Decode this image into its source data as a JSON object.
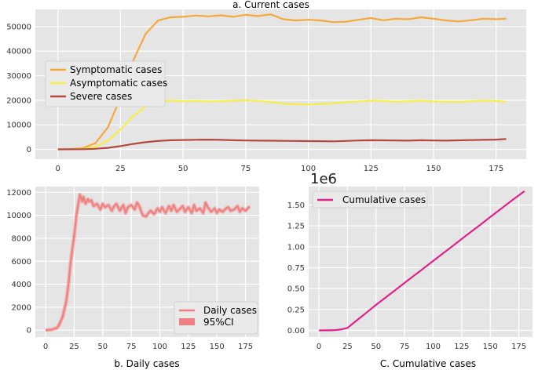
{
  "chart_data": [
    {
      "type": "line",
      "title": "a. Current cases",
      "xlim": [
        -9,
        187
      ],
      "ylim": [
        -4000,
        57000
      ],
      "x_ticks": [
        0,
        25,
        50,
        75,
        100,
        125,
        150,
        175
      ],
      "y_ticks": [
        0,
        10000,
        20000,
        30000,
        40000,
        50000
      ],
      "grid": true,
      "legend_position": "left-middle",
      "series": [
        {
          "name": "Symptomatic cases",
          "color": "#f5a93a",
          "x": [
            0,
            5,
            10,
            15,
            20,
            25,
            30,
            35,
            40,
            45,
            50,
            55,
            60,
            65,
            70,
            75,
            80,
            85,
            90,
            95,
            100,
            105,
            110,
            115,
            120,
            125,
            130,
            135,
            140,
            145,
            150,
            155,
            160,
            165,
            170,
            175,
            179
          ],
          "y": [
            0,
            100,
            500,
            2500,
            9000,
            21000,
            36000,
            47000,
            52500,
            53800,
            54000,
            54500,
            54200,
            54600,
            54000,
            54800,
            54300,
            55000,
            53000,
            52500,
            52800,
            52500,
            51800,
            52000,
            52800,
            53500,
            52600,
            53200,
            53000,
            53800,
            53200,
            52500,
            52100,
            52600,
            53200,
            53000,
            53200
          ]
        },
        {
          "name": "Asymptomatic cases",
          "color": "#f7ee4a",
          "x": [
            0,
            5,
            10,
            15,
            20,
            25,
            30,
            35,
            40,
            45,
            50,
            55,
            60,
            65,
            70,
            75,
            80,
            85,
            90,
            95,
            100,
            105,
            110,
            115,
            120,
            125,
            130,
            135,
            140,
            145,
            150,
            155,
            160,
            165,
            170,
            175,
            179
          ],
          "y": [
            0,
            50,
            200,
            1000,
            3500,
            8000,
            13500,
            17500,
            19500,
            19800,
            19600,
            19700,
            19500,
            19600,
            19800,
            20000,
            19700,
            19300,
            18600,
            18400,
            18300,
            18500,
            18800,
            19200,
            19500,
            19800,
            19700,
            19400,
            19600,
            19800,
            19500,
            19400,
            19300,
            19600,
            19800,
            19700,
            19400
          ]
        },
        {
          "name": "Severe cases",
          "color": "#b5483f",
          "x": [
            0,
            5,
            10,
            15,
            20,
            25,
            30,
            35,
            40,
            45,
            50,
            55,
            60,
            65,
            70,
            75,
            80,
            85,
            90,
            95,
            100,
            105,
            110,
            115,
            120,
            125,
            130,
            135,
            140,
            145,
            150,
            155,
            160,
            165,
            170,
            175,
            179
          ],
          "y": [
            0,
            10,
            50,
            200,
            600,
            1300,
            2200,
            2900,
            3400,
            3700,
            3800,
            3900,
            3950,
            3850,
            3700,
            3600,
            3550,
            3500,
            3450,
            3400,
            3350,
            3300,
            3250,
            3400,
            3600,
            3700,
            3650,
            3600,
            3550,
            3700,
            3600,
            3550,
            3650,
            3750,
            3850,
            3950,
            4200
          ]
        }
      ]
    },
    {
      "type": "line",
      "title": "b. Daily cases",
      "xlim": [
        -9,
        187
      ],
      "ylim": [
        -600,
        12500
      ],
      "x_ticks": [
        0,
        25,
        50,
        75,
        100,
        125,
        150,
        175
      ],
      "y_ticks": [
        0,
        2000,
        4000,
        6000,
        8000,
        10000,
        12000
      ],
      "grid": true,
      "legend_position": "bottom-right",
      "series": [
        {
          "name": "Daily cases",
          "color": "#f08080",
          "x": [
            0,
            5,
            10,
            12,
            15,
            18,
            20,
            22,
            25,
            27,
            30,
            32,
            33,
            35,
            37,
            38,
            40,
            42,
            45,
            48,
            50,
            52,
            55,
            58,
            60,
            62,
            65,
            68,
            70,
            72,
            75,
            78,
            80,
            82,
            85,
            88,
            90,
            92,
            95,
            98,
            100,
            102,
            105,
            108,
            110,
            112,
            115,
            118,
            120,
            122,
            125,
            128,
            130,
            132,
            135,
            138,
            140,
            142,
            145,
            148,
            150,
            152,
            155,
            158,
            160,
            162,
            165,
            168,
            170,
            172,
            175,
            178,
            179
          ],
          "y": [
            0,
            50,
            200,
            500,
            1200,
            2500,
            4000,
            6000,
            8200,
            10000,
            11800,
            11200,
            11600,
            11000,
            11400,
            11200,
            11300,
            10800,
            11000,
            10500,
            11000,
            10700,
            10900,
            10400,
            10800,
            11000,
            10400,
            10900,
            10200,
            10700,
            10900,
            10500,
            11100,
            10800,
            10000,
            9900,
            10200,
            10400,
            10100,
            10600,
            10300,
            10700,
            10200,
            10800,
            10400,
            10900,
            10300,
            10600,
            10800,
            10300,
            10700,
            10200,
            10900,
            10400,
            10600,
            10200,
            11100,
            10700,
            10300,
            10600,
            10200,
            10500,
            10300,
            10600,
            10700,
            10400,
            10500,
            10800,
            10300,
            10600,
            10400,
            10700,
            10700
          ]
        },
        {
          "name": "95%CI",
          "color": "#f08080"
        }
      ]
    },
    {
      "type": "line",
      "title": "C. Cumulative cases",
      "offset_label": "1e6",
      "xlim": [
        -9,
        187
      ],
      "ylim": [
        -0.08,
        1.72
      ],
      "x_ticks": [
        0,
        25,
        50,
        75,
        100,
        125,
        150,
        175
      ],
      "y_ticks": [
        0.0,
        0.25,
        0.5,
        0.75,
        1.0,
        1.25,
        1.5
      ],
      "y_tick_labels": [
        "0.00",
        "0.25",
        "0.50",
        "0.75",
        "1.00",
        "1.25",
        "1.50"
      ],
      "grid": true,
      "legend_position": "top-left",
      "series": [
        {
          "name": "Cumulative cases",
          "color": "#e0218a",
          "x": [
            0,
            5,
            10,
            15,
            20,
            25,
            30,
            35,
            40,
            50,
            60,
            70,
            80,
            90,
            100,
            110,
            120,
            130,
            140,
            150,
            160,
            170,
            180
          ],
          "y": [
            0,
            0.0002,
            0.001,
            0.004,
            0.013,
            0.03,
            0.085,
            0.14,
            0.195,
            0.305,
            0.41,
            0.515,
            0.62,
            0.725,
            0.83,
            0.935,
            1.04,
            1.145,
            1.25,
            1.355,
            1.46,
            1.565,
            1.665
          ]
        }
      ]
    }
  ]
}
